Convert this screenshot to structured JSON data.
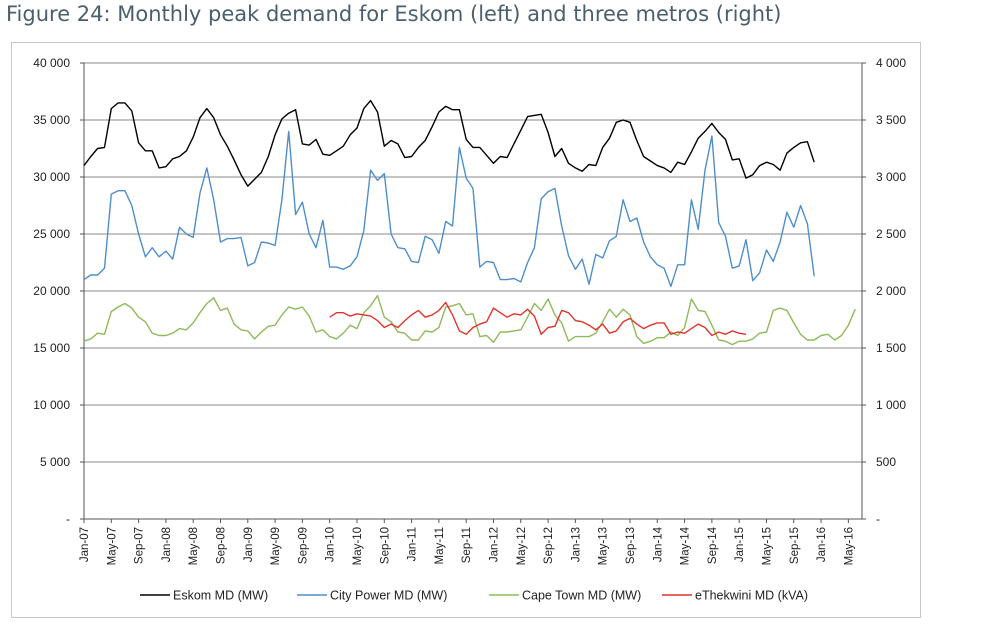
{
  "figure_title": "Figure 24: Monthly peak demand for Eskom (left) and three metros (right)",
  "chart_data": {
    "type": "line",
    "title": "Figure 24: Monthly peak demand for Eskom (left) and three metros (right)",
    "grid": true,
    "legend_position": "bottom",
    "x_start": "2007-01",
    "x_end": "2016-07",
    "x_tick_labels": [
      "Jan-07",
      "May-07",
      "Sep-07",
      "Jan-08",
      "May-08",
      "Sep-08",
      "Jan-09",
      "May-09",
      "Sep-09",
      "Jan-10",
      "May-10",
      "Sep-10",
      "Jan-11",
      "May-11",
      "Sep-11",
      "Jan-12",
      "May-12",
      "Sep-12",
      "Jan-13",
      "May-13",
      "Sep-13",
      "Jan-14",
      "May-14",
      "Sep-14",
      "Jan-15",
      "May-15",
      "Sep-15",
      "Jan-16",
      "May-16"
    ],
    "y_left": {
      "ylim": [
        0,
        40000
      ],
      "ticks": [
        0,
        5000,
        10000,
        15000,
        20000,
        25000,
        30000,
        35000,
        40000
      ],
      "tick_labels": [
        "-",
        "5 000",
        "10 000",
        "15 000",
        "20 000",
        "25 000",
        "30 000",
        "35 000",
        "40 000"
      ]
    },
    "y_right": {
      "ylim": [
        0,
        4000
      ],
      "ticks": [
        0,
        500,
        1000,
        1500,
        2000,
        2500,
        3000,
        3500,
        4000
      ],
      "tick_labels": [
        "-",
        "500",
        "1 000",
        "1 500",
        "2 000",
        "2 500",
        "3 000",
        "3 500",
        "4 000"
      ]
    },
    "series": [
      {
        "name": "Eskom MD (MW)",
        "axis": "left",
        "color": "#000000",
        "start": "2007-01",
        "values": [
          31000,
          31800,
          32500,
          32600,
          36000,
          36500,
          36500,
          35800,
          33000,
          32300,
          32300,
          30800,
          30900,
          31600,
          31800,
          32300,
          33500,
          35200,
          36000,
          35200,
          33700,
          32700,
          31500,
          30200,
          29200,
          29800,
          30400,
          31800,
          33700,
          35100,
          35600,
          35900,
          32900,
          32800,
          33300,
          32000,
          31900,
          32300,
          32700,
          33700,
          34300,
          36000,
          36700,
          35700,
          32700,
          33200,
          32900,
          31700,
          31800,
          32600,
          33200,
          34400,
          35700,
          36200,
          35900,
          35900,
          33300,
          32600,
          32600,
          31900,
          31200,
          31800,
          31700,
          32900,
          34100,
          35300,
          35400,
          35500,
          33900,
          31800,
          32500,
          31200,
          30800,
          30500,
          31100,
          31000,
          32600,
          33400,
          34800,
          35000,
          34800,
          33200,
          31800,
          31400,
          31000,
          30800,
          30400,
          31300,
          31100,
          32200,
          33400,
          34000,
          34700,
          33900,
          33300,
          31500,
          31600,
          29900,
          30200,
          31000,
          31300,
          31100,
          30600,
          32100,
          32600,
          33000,
          33100,
          31300
        ]
      },
      {
        "name": "City Power MD (MW)",
        "axis": "right",
        "color": "#4f8fc9",
        "start": "2007-01",
        "values": [
          2100,
          2140,
          2140,
          2200,
          2850,
          2880,
          2880,
          2750,
          2500,
          2300,
          2380,
          2300,
          2350,
          2280,
          2560,
          2500,
          2470,
          2860,
          3080,
          2800,
          2430,
          2460,
          2460,
          2470,
          2220,
          2250,
          2430,
          2420,
          2400,
          2800,
          3400,
          2670,
          2780,
          2500,
          2380,
          2620,
          2210,
          2210,
          2190,
          2220,
          2300,
          2530,
          3060,
          2970,
          3030,
          2500,
          2380,
          2370,
          2260,
          2250,
          2480,
          2450,
          2330,
          2610,
          2570,
          3260,
          2990,
          2900,
          2210,
          2260,
          2250,
          2100,
          2100,
          2110,
          2080,
          2250,
          2380,
          2810,
          2870,
          2900,
          2570,
          2310,
          2190,
          2280,
          2060,
          2320,
          2290,
          2440,
          2480,
          2800,
          2610,
          2640,
          2430,
          2300,
          2230,
          2200,
          2040,
          2230,
          2230,
          2800,
          2540,
          3060,
          3360,
          2600,
          2480,
          2200,
          2220,
          2450,
          2090,
          2160,
          2360,
          2260,
          2430,
          2690,
          2560,
          2750,
          2590,
          2130
        ]
      },
      {
        "name": "Cape Town MD (MW)",
        "axis": "right",
        "color": "#8dbb5a",
        "start": "2007-01",
        "values": [
          1560,
          1580,
          1630,
          1620,
          1820,
          1860,
          1890,
          1850,
          1770,
          1730,
          1630,
          1610,
          1610,
          1630,
          1670,
          1660,
          1720,
          1810,
          1890,
          1940,
          1830,
          1850,
          1710,
          1660,
          1650,
          1580,
          1640,
          1690,
          1700,
          1790,
          1860,
          1840,
          1860,
          1780,
          1640,
          1660,
          1600,
          1580,
          1630,
          1700,
          1670,
          1810,
          1870,
          1960,
          1770,
          1730,
          1640,
          1630,
          1570,
          1570,
          1650,
          1640,
          1680,
          1860,
          1870,
          1890,
          1790,
          1800,
          1600,
          1610,
          1550,
          1640,
          1640,
          1650,
          1660,
          1770,
          1890,
          1830,
          1930,
          1790,
          1720,
          1560,
          1600,
          1600,
          1600,
          1630,
          1730,
          1840,
          1770,
          1840,
          1790,
          1600,
          1540,
          1560,
          1590,
          1590,
          1640,
          1610,
          1680,
          1930,
          1830,
          1820,
          1700,
          1570,
          1560,
          1530,
          1560,
          1560,
          1580,
          1630,
          1640,
          1830,
          1850,
          1830,
          1720,
          1620,
          1570,
          1570,
          1610,
          1620,
          1570,
          1610,
          1700,
          1840
        ]
      },
      {
        "name": "eThekwini MD (kVA)",
        "axis": "right",
        "color": "#e0342b",
        "start": "2010-01",
        "values": [
          1770,
          1810,
          1810,
          1780,
          1800,
          1790,
          1780,
          1740,
          1680,
          1710,
          1680,
          1740,
          1790,
          1830,
          1770,
          1790,
          1830,
          1900,
          1790,
          1650,
          1620,
          1680,
          1710,
          1730,
          1850,
          1810,
          1770,
          1800,
          1790,
          1840,
          1780,
          1620,
          1680,
          1690,
          1830,
          1810,
          1740,
          1730,
          1700,
          1660,
          1710,
          1630,
          1650,
          1730,
          1760,
          1710,
          1670,
          1700,
          1720,
          1720,
          1620,
          1640,
          1630,
          1670,
          1710,
          1680,
          1610,
          1640,
          1620,
          1650,
          1630,
          1620
        ]
      }
    ]
  }
}
